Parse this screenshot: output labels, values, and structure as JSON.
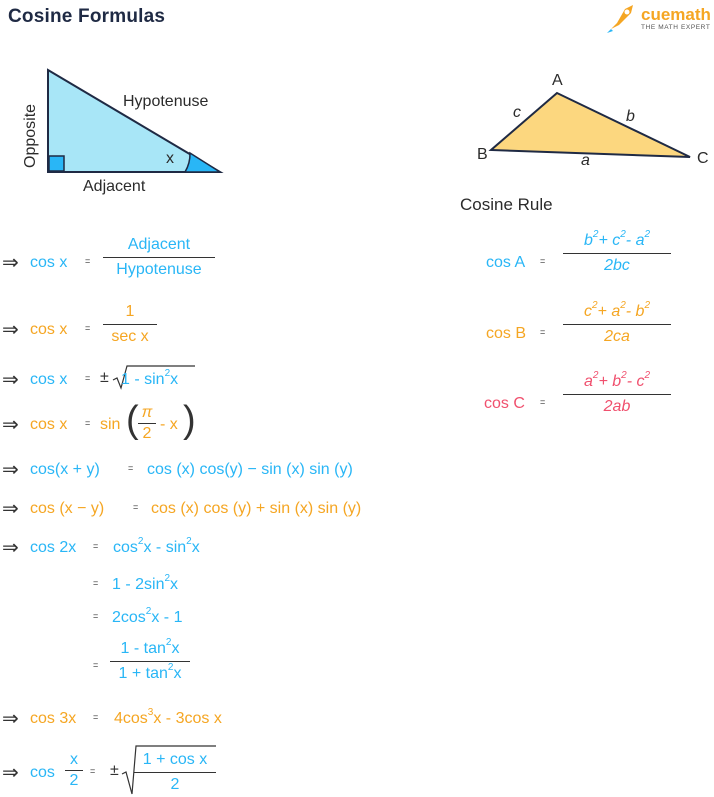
{
  "title": "Cosine Formulas",
  "logo": {
    "name": "cuemath",
    "tagline": "THE MATH EXPERT"
  },
  "right_triangle": {
    "opposite": "Opposite",
    "hypotenuse": "Hypotenuse",
    "adjacent": "Adjacent",
    "angle": "x"
  },
  "general_triangle": {
    "A": "A",
    "B": "B",
    "C": "C",
    "a": "a",
    "b": "b",
    "c": "c"
  },
  "cosine_rule": {
    "heading": "Cosine Rule",
    "cosA": {
      "lhs": "cos A",
      "den": "2bc"
    },
    "cosB": {
      "lhs": "cos B",
      "den": "2ca"
    },
    "cosC": {
      "lhs": "cos C",
      "den": "2ab"
    }
  },
  "formulas": {
    "f1": {
      "lhs": "cos x",
      "num": "Adjacent",
      "den": "Hypotenuse"
    },
    "f2": {
      "lhs": "cos x",
      "num": "1",
      "den": "sec x"
    },
    "f3": {
      "lhs": "cos x"
    },
    "f4": {
      "lhs": "cos x"
    },
    "f5": {
      "lhs": "cos(x + y)",
      "rhs": "cos (x) cos(y) − sin (x) sin (y)"
    },
    "f6": {
      "lhs": "cos (x − y)",
      "rhs": "cos (x) cos (y) + sin (x) sin (y)"
    },
    "f7": {
      "lhs": "cos 2x"
    },
    "f8": {
      "lhs": "cos 3x"
    },
    "f9": {
      "lhs": "cos"
    }
  },
  "colors": {
    "blue": "#29b6f6",
    "orange": "#f5a623",
    "pink": "#f0506e",
    "triangle_blue": "#a8e6f7",
    "triangle_yellow": "#fcd77f"
  }
}
